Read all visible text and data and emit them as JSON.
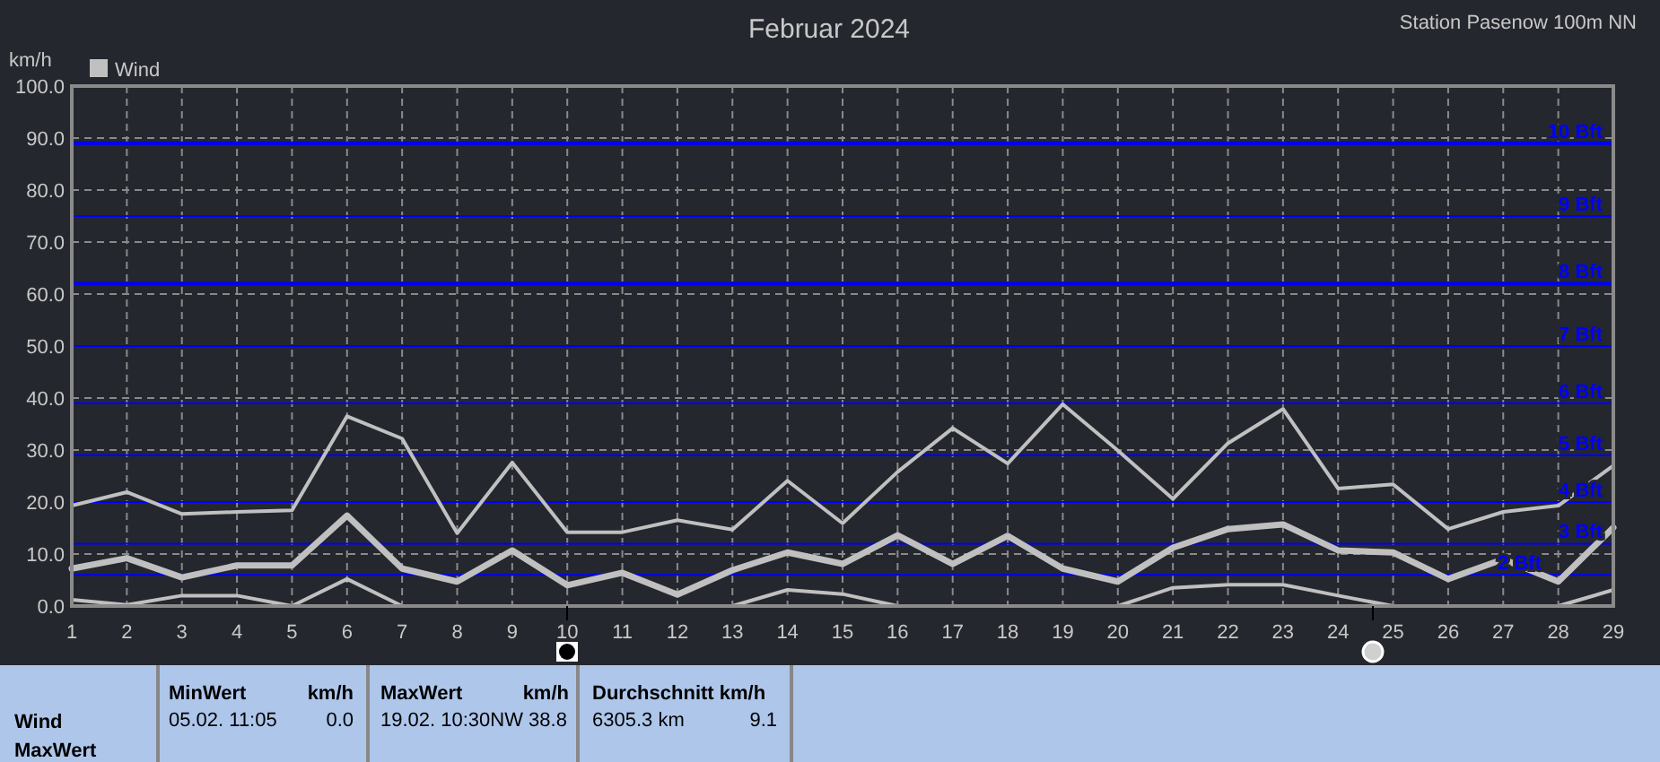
{
  "chart_data": {
    "type": "line",
    "title": "Februar 2024",
    "subtitle": "Station Pasenow 100m NN",
    "ylabel": "km/h",
    "x": [
      1,
      2,
      3,
      4,
      5,
      6,
      7,
      8,
      9,
      10,
      11,
      12,
      13,
      14,
      15,
      16,
      17,
      18,
      19,
      20,
      21,
      22,
      23,
      24,
      25,
      26,
      27,
      28,
      29
    ],
    "xlim": [
      1,
      29
    ],
    "xticks": [
      1,
      2,
      3,
      4,
      5,
      6,
      7,
      8,
      9,
      10,
      11,
      12,
      13,
      14,
      15,
      16,
      17,
      18,
      19,
      20,
      21,
      22,
      23,
      24,
      25,
      26,
      27,
      28,
      29
    ],
    "ylim": [
      0,
      100
    ],
    "yticks": [
      {
        "value": 0,
        "label": "0.0"
      },
      {
        "value": 10,
        "label": "10.0"
      },
      {
        "value": 20,
        "label": "20.0"
      },
      {
        "value": 30,
        "label": "30.0"
      },
      {
        "value": 40,
        "label": "40.0"
      },
      {
        "value": 50,
        "label": "50.0"
      },
      {
        "value": 60,
        "label": "60.0"
      },
      {
        "value": 70,
        "label": "70.0"
      },
      {
        "value": 80,
        "label": "80.0"
      },
      {
        "value": 90,
        "label": "90.0"
      },
      {
        "value": 100,
        "label": "100.0"
      }
    ],
    "grid": true,
    "legend": "top left",
    "marker": "none",
    "line_style": "solid",
    "series": [
      {
        "name": "Wind",
        "color": "#c0c0c0",
        "values": [
          19.3,
          21.9,
          17.7,
          18.1,
          18.4,
          36.5,
          32.2,
          14.0,
          27.6,
          14.2,
          14.2,
          16.5,
          14.7,
          24.1,
          15.9,
          25.8,
          34.2,
          27.4,
          38.8,
          29.9,
          20.6,
          31.3,
          37.9,
          22.6,
          23.4,
          14.8,
          18.1,
          19.3,
          27.0
        ]
      },
      {
        "color": "#c0c0c0",
        "values": [
          7.2,
          9.2,
          5.5,
          7.8,
          7.8,
          17.4,
          7.2,
          4.7,
          10.7,
          4.0,
          6.4,
          2.2,
          6.9,
          10.3,
          8.1,
          13.6,
          8.1,
          13.5,
          7.2,
          4.7,
          11.2,
          14.8,
          15.7,
          10.7,
          10.3,
          5.2,
          9.0,
          4.7,
          15.1
        ]
      },
      {
        "color": "#c0c0c0",
        "values": [
          1.2,
          0.2,
          2.0,
          2.0,
          0,
          5.2,
          0,
          0,
          0,
          0,
          0,
          0,
          0,
          3.1,
          2.3,
          0,
          0,
          0,
          0,
          0,
          3.5,
          4.1,
          4.1,
          2.0,
          0,
          0,
          0,
          0,
          3.1
        ]
      }
    ],
    "ref_lines": [
      {
        "axis": "y",
        "value": 6,
        "label": "2 Bft",
        "color": "#0000ff"
      },
      {
        "axis": "y",
        "value": 12,
        "label": "3 Bft",
        "color": "#0000ff"
      },
      {
        "axis": "y",
        "value": 20,
        "label": "4 Bft",
        "color": "#0000ff"
      },
      {
        "axis": "y",
        "value": 29,
        "label": "5 Bft",
        "color": "#0000ff"
      },
      {
        "axis": "y",
        "value": 39,
        "label": "6 Bft",
        "color": "#0000ff"
      },
      {
        "axis": "y",
        "value": 50,
        "label": "7 Bft",
        "color": "#0000ff"
      },
      {
        "axis": "y",
        "value": 62,
        "label": "8 Bft",
        "color": "#0000ff"
      },
      {
        "axis": "y",
        "value": 75,
        "label": "9 Bft",
        "color": "#0000ff"
      },
      {
        "axis": "y",
        "value": 89,
        "label": "10 Bft",
        "color": "#0000ff"
      }
    ],
    "annotations": [
      "Wind",
      "MaxWert",
      "MinWert",
      "km/h",
      "05.02.  11:05",
      "0.0",
      "MaxWert",
      "km/h",
      "19.02.  10:30NW 38.8",
      "Durchschnitt km/h",
      "6305.3 km",
      "9.1"
    ]
  }
}
